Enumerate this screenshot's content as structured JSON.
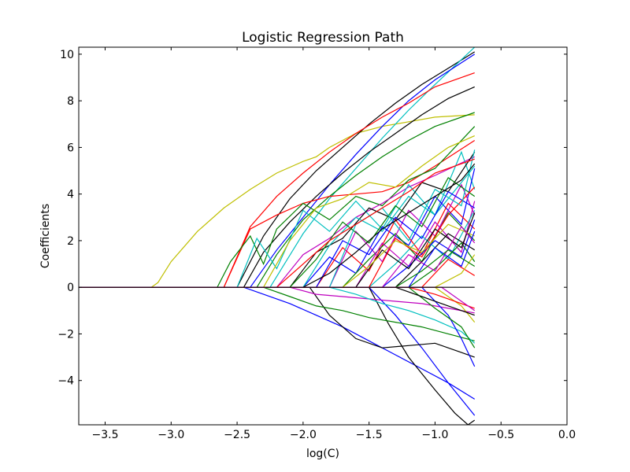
{
  "chart_data": {
    "type": "line",
    "title": "Logistic Regression Path",
    "xlabel": "log(C)",
    "ylabel": "Coefficients",
    "xlim": [
      -3.7,
      0.0
    ],
    "ylim": [
      -5.9,
      10.3
    ],
    "xticks": [
      -3.5,
      -3.0,
      -2.5,
      -2.0,
      -1.5,
      -1.0,
      -0.5,
      0.0
    ],
    "xtick_labels": [
      "−3.5",
      "−3.0",
      "−2.5",
      "−2.0",
      "−1.5",
      "−1.0",
      "−0.5",
      "0.0"
    ],
    "yticks": [
      -4,
      -2,
      0,
      2,
      4,
      6,
      8,
      10
    ],
    "ytick_labels": [
      "−4",
      "−2",
      "0",
      "2",
      "4",
      "6",
      "8",
      "10"
    ],
    "grid": false,
    "legend": "none",
    "colors": [
      "#0000ff",
      "#008000",
      "#ff0000",
      "#00bfbf",
      "#bf00bf",
      "#bfbf00",
      "#000000"
    ],
    "series": [
      {
        "color": "#bfbf00",
        "x": [
          -3.7,
          -3.15,
          -3.1,
          -3.0,
          -2.8,
          -2.6,
          -2.4,
          -2.2,
          -2.0,
          -1.9,
          -1.8,
          -1.6,
          -1.4,
          -1.2,
          -1.0,
          -0.7
        ],
        "y": [
          0,
          0,
          0.2,
          1.1,
          2.4,
          3.4,
          4.2,
          4.9,
          5.4,
          5.6,
          6.0,
          6.6,
          6.9,
          7.1,
          7.3,
          7.4
        ]
      },
      {
        "color": "#000000",
        "x": [
          -3.7,
          -2.5,
          -2.3,
          -2.1,
          -1.9,
          -1.7,
          -1.5,
          -1.3,
          -1.1,
          -0.9,
          -0.7
        ],
        "y": [
          0,
          0,
          2.2,
          3.8,
          5.0,
          6.0,
          7.0,
          7.9,
          8.7,
          9.4,
          10.1
        ]
      },
      {
        "color": "#00bfbf",
        "x": [
          -3.7,
          -2.25,
          -2.0,
          -1.8,
          -1.6,
          -1.4,
          -1.2,
          -1.0,
          -0.7
        ],
        "y": [
          0,
          0,
          2.3,
          3.8,
          5.1,
          6.4,
          7.6,
          8.7,
          10.3
        ]
      },
      {
        "color": "#0000ff",
        "x": [
          -3.7,
          -2.4,
          -2.2,
          -2.0,
          -1.8,
          -1.6,
          -1.4,
          -1.2,
          -1.0,
          -0.7
        ],
        "y": [
          0,
          0,
          1.6,
          3.0,
          4.4,
          5.7,
          6.9,
          8.0,
          8.9,
          10.0
        ]
      },
      {
        "color": "#ff0000",
        "x": [
          -3.7,
          -2.6,
          -2.4,
          -2.2,
          -2.0,
          -1.8,
          -1.6,
          -1.4,
          -1.2,
          -1.0,
          -0.7
        ],
        "y": [
          0,
          0,
          2.6,
          3.9,
          4.9,
          5.8,
          6.6,
          7.3,
          7.9,
          8.6,
          9.2
        ]
      },
      {
        "color": "#000000",
        "x": [
          -3.7,
          -2.45,
          -2.3,
          -2.1,
          -1.9,
          -1.7,
          -1.5,
          -1.3,
          -1.1,
          -0.9,
          -0.7
        ],
        "y": [
          0,
          0,
          1.5,
          2.8,
          3.9,
          4.9,
          5.8,
          6.6,
          7.4,
          8.1,
          8.6
        ]
      },
      {
        "color": "#008000",
        "x": [
          -3.7,
          -2.35,
          -2.2,
          -2.0,
          -1.8,
          -1.6,
          -1.4,
          -1.2,
          -1.0,
          -0.7
        ],
        "y": [
          0,
          0,
          1.4,
          2.9,
          3.9,
          4.8,
          5.6,
          6.3,
          6.9,
          7.5
        ]
      },
      {
        "color": "#ff0000",
        "x": [
          -3.7,
          -2.6,
          -2.4,
          -2.2,
          -2.0,
          -1.8,
          -1.6,
          -1.4,
          -1.2,
          -1.0,
          -0.7
        ],
        "y": [
          0,
          0,
          2.5,
          3.1,
          3.6,
          3.9,
          4.0,
          4.1,
          4.5,
          5.2,
          6.3
        ]
      },
      {
        "color": "#008000",
        "x": [
          -3.7,
          -2.65,
          -2.55,
          -2.4,
          -2.3,
          -2.2,
          -2.0,
          -1.8,
          -1.6,
          -1.4,
          -1.2,
          -1.0,
          -0.7
        ],
        "y": [
          0,
          0,
          1.1,
          2.2,
          1.0,
          2.5,
          3.6,
          2.9,
          3.9,
          3.5,
          4.6,
          5.1,
          6.9
        ]
      },
      {
        "color": "#bf00bf",
        "x": [
          -3.7,
          -2.2,
          -2.0,
          -1.8,
          -1.6,
          -1.4,
          -1.2,
          -1.0,
          -0.7
        ],
        "y": [
          0,
          0,
          1.4,
          2.1,
          3.0,
          3.6,
          4.3,
          4.8,
          5.6
        ]
      },
      {
        "color": "#00bfbf",
        "x": [
          -3.7,
          -2.5,
          -2.35,
          -2.2,
          -2.0,
          -1.8,
          -1.6,
          -1.4,
          -1.2,
          -1.0,
          -0.8,
          -0.7
        ],
        "y": [
          0,
          0,
          2.1,
          0.8,
          3.3,
          2.4,
          3.7,
          2.5,
          4.4,
          3.1,
          5.8,
          4.2
        ]
      },
      {
        "color": "#0000ff",
        "x": [
          -3.7,
          -2.0,
          -1.8,
          -1.6,
          -1.4,
          -1.2,
          -1.0,
          -0.8,
          -0.7
        ],
        "y": [
          0,
          0,
          1.3,
          0.6,
          2.6,
          1.8,
          3.9,
          2.7,
          5.1
        ]
      },
      {
        "color": "#000000",
        "x": [
          -3.7,
          -2.1,
          -1.9,
          -1.7,
          -1.5,
          -1.3,
          -1.1,
          -0.9,
          -0.7
        ],
        "y": [
          0,
          0,
          1.5,
          2.1,
          3.4,
          2.9,
          4.5,
          4.1,
          5.8
        ]
      },
      {
        "color": "#bfbf00",
        "x": [
          -3.7,
          -2.3,
          -2.1,
          -1.9,
          -1.7,
          -1.5,
          -1.3,
          -1.1,
          -0.9,
          -0.7
        ],
        "y": [
          0,
          0,
          2.0,
          3.4,
          3.8,
          4.5,
          4.3,
          5.2,
          6.0,
          6.5
        ]
      },
      {
        "color": "#ff0000",
        "x": [
          -3.7,
          -1.9,
          -1.7,
          -1.5,
          -1.3,
          -1.1,
          -0.9,
          -0.7
        ],
        "y": [
          0,
          0,
          1.7,
          0.7,
          2.9,
          1.4,
          3.6,
          2.5
        ]
      },
      {
        "color": "#008000",
        "x": [
          -3.7,
          -1.7,
          -1.5,
          -1.3,
          -1.1,
          -0.9,
          -0.7
        ],
        "y": [
          0,
          0,
          1.2,
          2.3,
          1.1,
          3.2,
          2.0
        ]
      },
      {
        "color": "#bf00bf",
        "x": [
          -3.7,
          -1.6,
          -1.4,
          -1.2,
          -1.0,
          -0.8,
          -0.7
        ],
        "y": [
          0,
          0,
          1.9,
          0.9,
          2.8,
          1.5,
          3.7
        ]
      },
      {
        "color": "#00bfbf",
        "x": [
          -3.7,
          -1.5,
          -1.3,
          -1.1,
          -0.9,
          -0.7
        ],
        "y": [
          0,
          0,
          1.0,
          2.2,
          1.2,
          3.3
        ]
      },
      {
        "color": "#0000ff",
        "x": [
          -3.7,
          -1.4,
          -1.2,
          -1.0,
          -0.8,
          -0.7
        ],
        "y": [
          0,
          0,
          0.9,
          2.0,
          1.3,
          2.9
        ]
      },
      {
        "color": "#000000",
        "x": [
          -3.7,
          -1.3,
          -1.1,
          -0.9,
          -0.7
        ],
        "y": [
          0,
          0,
          1.1,
          2.3,
          1.6
        ]
      },
      {
        "color": "#008000",
        "x": [
          -3.7,
          -1.2,
          -1.0,
          -0.8,
          -0.7
        ],
        "y": [
          0,
          0,
          0.8,
          1.9,
          1.1
        ]
      },
      {
        "color": "#ff0000",
        "x": [
          -3.7,
          -1.1,
          -0.9,
          -0.7
        ],
        "y": [
          0,
          0,
          1.2,
          0.5
        ]
      },
      {
        "color": "#bfbf00",
        "x": [
          -3.7,
          -1.0,
          -0.8,
          -0.7
        ],
        "y": [
          0,
          0,
          0.6,
          1.4
        ]
      },
      {
        "color": "#bf00bf",
        "x": [
          -3.7,
          -1.8,
          -1.6,
          -1.4,
          -1.2,
          -1.0,
          -0.8,
          -0.7
        ],
        "y": [
          0,
          0,
          2.4,
          1.1,
          3.3,
          2.2,
          4.4,
          3.1
        ]
      },
      {
        "color": "#00bfbf",
        "x": [
          -3.7,
          -2.0,
          -1.8,
          -1.6,
          -1.4,
          -1.2,
          -1.0,
          -0.7
        ],
        "y": [
          0,
          0,
          1.8,
          3.0,
          2.4,
          3.9,
          3.1,
          5.2
        ]
      },
      {
        "color": "#0000ff",
        "x": [
          -3.7,
          -1.9,
          -1.7,
          -1.5,
          -1.3,
          -1.1,
          -0.9,
          -0.7
        ],
        "y": [
          0,
          0,
          2.0,
          1.4,
          3.0,
          2.1,
          4.1,
          3.4
        ]
      },
      {
        "color": "#008000",
        "x": [
          -3.7,
          -2.1,
          -1.9,
          -1.7,
          -1.5,
          -1.3,
          -1.1,
          -0.9,
          -0.7
        ],
        "y": [
          0,
          0,
          1.2,
          2.8,
          1.9,
          3.5,
          2.6,
          4.7,
          3.9
        ]
      },
      {
        "color": "#000000",
        "x": [
          -3.7,
          -1.6,
          -1.4,
          -1.2,
          -1.0,
          -0.8,
          -0.7
        ],
        "y": [
          0,
          0,
          1.6,
          0.8,
          2.5,
          1.7,
          3.2
        ]
      },
      {
        "color": "#ff0000",
        "x": [
          -3.7,
          -1.5,
          -1.3,
          -1.1,
          -0.9,
          -0.7
        ],
        "y": [
          0,
          0,
          2.1,
          1.3,
          3.1,
          4.3
        ]
      },
      {
        "color": "#bfbf00",
        "x": [
          -3.7,
          -1.7,
          -1.5,
          -1.3,
          -1.1,
          -0.9,
          -0.7
        ],
        "y": [
          0,
          0,
          0.9,
          2.0,
          1.5,
          2.7,
          2.2
        ]
      },
      {
        "color": "#00bfbf",
        "x": [
          -3.7,
          -1.8,
          -1.6,
          -1.4,
          -1.2,
          -1.0,
          -0.8,
          -0.7
        ],
        "y": [
          0,
          0,
          2.7,
          3.4,
          2.0,
          4.2,
          3.5,
          5.9
        ]
      },
      {
        "color": "#bf00bf",
        "x": [
          -3.7,
          -1.4,
          -1.2,
          -1.0,
          -0.8,
          -0.7
        ],
        "y": [
          0,
          0,
          1.4,
          0.7,
          2.6,
          1.9
        ]
      },
      {
        "color": "#0000ff",
        "x": [
          -3.7,
          -1.2,
          -1.0,
          -0.8,
          -0.7
        ],
        "y": [
          0,
          0,
          1.7,
          0.9,
          2.4
        ]
      },
      {
        "color": "#008000",
        "x": [
          -3.7,
          -1.3,
          -1.1,
          -0.9,
          -0.7
        ],
        "y": [
          0,
          0,
          0.7,
          1.6,
          0.9
        ]
      },
      {
        "color": "#000000",
        "x": [
          -3.7,
          -2.0,
          -1.8,
          -1.6,
          -1.4,
          -1.2,
          -1.0,
          -0.8,
          -0.7
        ],
        "y": [
          0,
          0,
          0.6,
          1.5,
          2.5,
          3.2,
          3.9,
          4.6,
          5.3
        ]
      },
      {
        "color": "#ff0000",
        "x": [
          -3.7,
          -2.2,
          -2.0,
          -1.8,
          -1.6,
          -1.4,
          -1.2,
          -1.0,
          -0.7
        ],
        "y": [
          0,
          0,
          1.0,
          2.0,
          2.7,
          3.4,
          4.1,
          4.9,
          5.5
        ]
      },
      {
        "color": "#0000ff",
        "x": [
          -3.7,
          -2.45,
          -2.3,
          -2.1,
          -1.9,
          -1.7,
          -1.5,
          -1.3,
          -1.1,
          -0.9,
          -0.7
        ],
        "y": [
          0,
          0,
          -0.3,
          -0.7,
          -1.2,
          -1.7,
          -2.3,
          -2.9,
          -3.5,
          -4.1,
          -4.8
        ]
      },
      {
        "color": "#0000ff",
        "x": [
          -3.7,
          -1.5,
          -1.3,
          -1.1,
          -0.9,
          -0.7
        ],
        "y": [
          0,
          0,
          -1.2,
          -2.6,
          -4.1,
          -5.5
        ]
      },
      {
        "color": "#000000",
        "x": [
          -3.7,
          -1.95,
          -1.8,
          -1.6,
          -1.4,
          -1.2,
          -1.0,
          -0.8,
          -0.7
        ],
        "y": [
          0,
          0,
          -1.2,
          -2.2,
          -2.6,
          -2.5,
          -2.4,
          -2.8,
          -3.0
        ]
      },
      {
        "color": "#000000",
        "x": [
          -3.7,
          -1.5,
          -1.35,
          -1.2,
          -1.0,
          -0.85,
          -0.75,
          -0.7
        ],
        "y": [
          0,
          0,
          -1.6,
          -3.0,
          -4.4,
          -5.4,
          -5.9,
          -5.7
        ]
      },
      {
        "color": "#008000",
        "x": [
          -3.7,
          -2.3,
          -2.1,
          -1.9,
          -1.7,
          -1.5,
          -1.3,
          -1.1,
          -0.9,
          -0.7
        ],
        "y": [
          0,
          0,
          -0.4,
          -0.8,
          -1.0,
          -1.3,
          -1.5,
          -1.7,
          -2.0,
          -2.3
        ]
      },
      {
        "color": "#bf00bf",
        "x": [
          -3.7,
          -2.1,
          -1.9,
          -1.7,
          -1.5,
          -1.3,
          -1.1,
          -0.9,
          -0.7
        ],
        "y": [
          0,
          0,
          -0.3,
          -0.4,
          -0.5,
          -0.6,
          -0.7,
          -0.9,
          -1.1
        ]
      },
      {
        "color": "#00bfbf",
        "x": [
          -3.7,
          -1.8,
          -1.6,
          -1.4,
          -1.2,
          -1.0,
          -0.8,
          -0.7
        ],
        "y": [
          0,
          0,
          -0.3,
          -0.7,
          -1.0,
          -1.4,
          -1.9,
          -2.4
        ]
      },
      {
        "color": "#0000ff",
        "x": [
          -3.7,
          -1.1,
          -0.9,
          -0.8,
          -0.7
        ],
        "y": [
          0,
          0,
          -1.2,
          -2.2,
          -3.4
        ]
      },
      {
        "color": "#008000",
        "x": [
          -3.7,
          -1.2,
          -1.0,
          -0.8,
          -0.7
        ],
        "y": [
          0,
          0,
          -0.9,
          -1.7,
          -2.6
        ]
      },
      {
        "color": "#bfbf00",
        "x": [
          -3.7,
          -1.0,
          -0.8,
          -0.7
        ],
        "y": [
          0,
          0,
          -0.8,
          -1.5
        ]
      },
      {
        "color": "#000000",
        "x": [
          -3.7,
          -1.3,
          -1.1,
          -0.9,
          -0.7
        ],
        "y": [
          0,
          0,
          -0.4,
          -0.8,
          -1.2
        ]
      },
      {
        "color": "#ff0000",
        "x": [
          -3.7,
          -1.2,
          -1.0,
          -0.8,
          -0.7
        ],
        "y": [
          0,
          0,
          -0.3,
          -0.7,
          -0.9
        ]
      },
      {
        "color": "#bf00bf",
        "x": [
          -3.7,
          -0.95,
          -0.8,
          -0.7
        ],
        "y": [
          0,
          0,
          -0.6,
          -1.0
        ]
      },
      {
        "color": "#000000",
        "x": [
          -3.7,
          -0.7
        ],
        "y": [
          0,
          0
        ]
      }
    ]
  }
}
